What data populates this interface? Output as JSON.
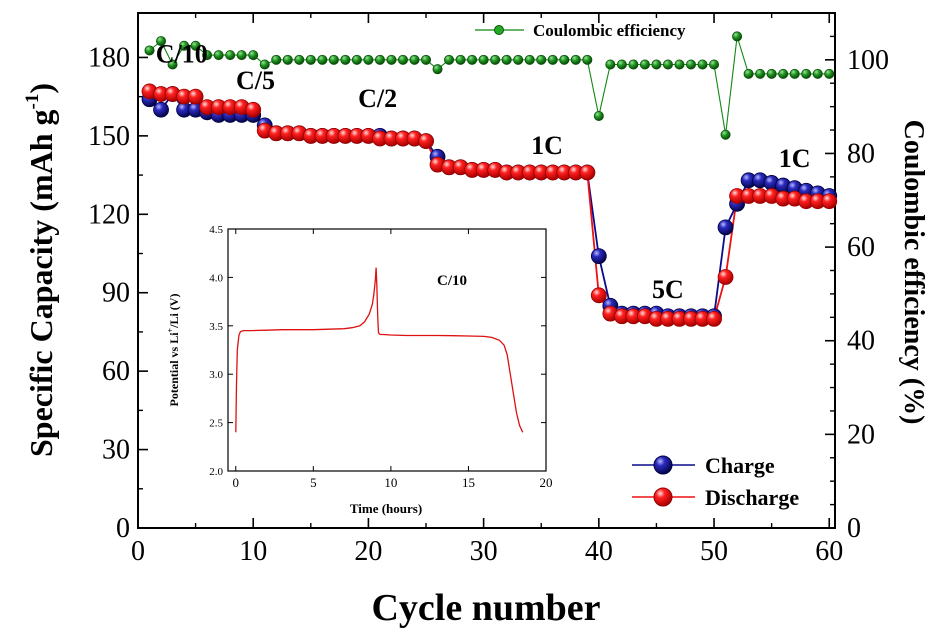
{
  "chart_data": [
    {
      "type": "scatter",
      "title": "",
      "xlabel": "Cycle number",
      "ylabel": "Specific Capacity (mAh g",
      "ylabel_sup": "-1",
      "ylabel_close": ")",
      "y2label": "Coulombic efficiency (%)",
      "xlim": [
        0,
        60.5
      ],
      "ylim": [
        0,
        197
      ],
      "y2lim": [
        0,
        110
      ],
      "x_ticks": [
        0,
        10,
        20,
        30,
        40,
        50,
        60
      ],
      "y_ticks": [
        0,
        30,
        60,
        90,
        120,
        150,
        180
      ],
      "y2_ticks": [
        0,
        20,
        40,
        60,
        80,
        100
      ],
      "grid": false,
      "legend_position": "bottom-right",
      "rate_labels": [
        {
          "text": "C/10",
          "x": 3.8,
          "y": 178
        },
        {
          "text": "C/5",
          "x": 10.2,
          "y": 168
        },
        {
          "text": "C/2",
          "x": 20.8,
          "y": 161
        },
        {
          "text": "1C",
          "x": 35.5,
          "y": 143
        },
        {
          "text": "5C",
          "x": 46.0,
          "y": 88
        },
        {
          "text": "1C",
          "x": 57.0,
          "y": 138
        }
      ],
      "series": [
        {
          "name": "Charge",
          "axis": "left",
          "color": "#0a0a8c",
          "x": [
            1,
            2,
            3,
            4,
            5,
            6,
            7,
            8,
            9,
            10,
            11,
            12,
            13,
            14,
            15,
            16,
            17,
            18,
            19,
            20,
            21,
            22,
            23,
            24,
            25,
            26,
            27,
            28,
            29,
            30,
            31,
            32,
            33,
            34,
            35,
            36,
            37,
            38,
            39,
            40,
            41,
            42,
            43,
            44,
            45,
            46,
            47,
            48,
            49,
            50,
            51,
            52,
            53,
            54,
            55,
            56,
            57,
            58,
            59,
            60
          ],
          "values": [
            164,
            160,
            166,
            160,
            160,
            159,
            158,
            158,
            158,
            158,
            154,
            151,
            151,
            151,
            150,
            150,
            150,
            150,
            150,
            150,
            150,
            149,
            149,
            149,
            148,
            142,
            138,
            138,
            137,
            137,
            137,
            136,
            136,
            136,
            136,
            136,
            136,
            136,
            136,
            104,
            85,
            82,
            82,
            82,
            82,
            81,
            81,
            81,
            81,
            81,
            115,
            124,
            133,
            133,
            132,
            131,
            130,
            129,
            128,
            127
          ]
        },
        {
          "name": "Discharge",
          "axis": "left",
          "color": "#ee1111",
          "x": [
            1,
            2,
            3,
            4,
            5,
            6,
            7,
            8,
            9,
            10,
            11,
            12,
            13,
            14,
            15,
            16,
            17,
            18,
            19,
            20,
            21,
            22,
            23,
            24,
            25,
            26,
            27,
            28,
            29,
            30,
            31,
            32,
            33,
            34,
            35,
            36,
            37,
            38,
            39,
            40,
            41,
            42,
            43,
            44,
            45,
            46,
            47,
            48,
            49,
            50,
            51,
            52,
            53,
            54,
            55,
            56,
            57,
            58,
            59,
            60
          ],
          "values": [
            167,
            166,
            166,
            165,
            165,
            161,
            161,
            161,
            161,
            160,
            152,
            151,
            151,
            151,
            150,
            150,
            150,
            150,
            150,
            150,
            149,
            149,
            149,
            149,
            148,
            139,
            138,
            138,
            137,
            137,
            137,
            136,
            136,
            136,
            136,
            136,
            136,
            136,
            136,
            89,
            82,
            81,
            81,
            81,
            80,
            80,
            80,
            80,
            80,
            80,
            96,
            127,
            127,
            127,
            127,
            126,
            126,
            125,
            125,
            125
          ]
        },
        {
          "name": "Coulombic efficiency",
          "axis": "right",
          "color": "#118811",
          "x": [
            1,
            2,
            3,
            4,
            5,
            6,
            7,
            8,
            9,
            10,
            11,
            12,
            13,
            14,
            15,
            16,
            17,
            18,
            19,
            20,
            21,
            22,
            23,
            24,
            25,
            26,
            27,
            28,
            29,
            30,
            31,
            32,
            33,
            34,
            35,
            36,
            37,
            38,
            39,
            40,
            41,
            42,
            43,
            44,
            45,
            46,
            47,
            48,
            49,
            50,
            51,
            52,
            53,
            54,
            55,
            56,
            57,
            58,
            59,
            60
          ],
          "values": [
            102,
            104,
            99,
            103,
            103,
            101,
            101,
            101,
            101,
            101,
            99,
            100,
            100,
            100,
            100,
            100,
            100,
            100,
            100,
            100,
            100,
            100,
            100,
            100,
            100,
            98,
            100,
            100,
            100,
            100,
            100,
            100,
            100,
            100,
            100,
            100,
            100,
            100,
            100,
            88,
            99,
            99,
            99,
            99,
            99,
            99,
            99,
            99,
            99,
            99,
            84,
            105,
            97,
            97,
            97,
            97,
            97,
            97,
            97,
            97
          ]
        }
      ]
    },
    {
      "type": "line",
      "title": "",
      "annotation": "C/10",
      "xlabel": "Time (hours)",
      "ylabel": "Potential vs Li",
      "ylabel_sup": "+",
      "ylabel_rest": "/Li (V)",
      "xlim": [
        -0.5,
        20
      ],
      "ylim": [
        2.0,
        4.5
      ],
      "x_ticks": [
        0,
        5,
        10,
        15,
        20
      ],
      "y_ticks": [
        2.0,
        2.5,
        3.0,
        3.5,
        4.0,
        4.5
      ],
      "y_tick_labels": [
        "2.0",
        "2.5",
        "3.0",
        "3.5",
        "4.0",
        "4.5"
      ],
      "color": "#dd1111",
      "x": [
        0.0,
        0.05,
        0.1,
        0.2,
        0.3,
        0.5,
        1,
        2,
        3,
        4,
        5,
        6,
        7,
        7.5,
        8,
        8.3,
        8.6,
        8.8,
        8.9,
        9.0,
        9.05,
        9.1,
        9.15,
        9.2,
        9.3,
        9.5,
        10,
        11,
        12,
        13,
        14,
        15,
        16,
        16.5,
        17,
        17.3,
        17.5,
        17.7,
        17.9,
        18.1,
        18.3,
        18.5
      ],
      "y": [
        2.4,
        2.9,
        3.25,
        3.4,
        3.44,
        3.45,
        3.45,
        3.455,
        3.46,
        3.46,
        3.46,
        3.465,
        3.47,
        3.48,
        3.5,
        3.54,
        3.62,
        3.72,
        3.82,
        3.98,
        4.1,
        3.9,
        3.6,
        3.43,
        3.41,
        3.41,
        3.405,
        3.4,
        3.4,
        3.4,
        3.398,
        3.395,
        3.39,
        3.38,
        3.35,
        3.3,
        3.2,
        3.0,
        2.8,
        2.6,
        2.47,
        2.4
      ]
    }
  ]
}
